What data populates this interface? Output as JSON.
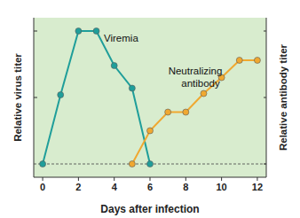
{
  "chart_data": {
    "type": "line",
    "x_label": "Days after infection",
    "y_label": "Relative virus titer",
    "y2_label": "Relative antibody titer",
    "xlim": [
      -0.5,
      12.5
    ],
    "xticks": [
      0,
      2,
      4,
      6,
      8,
      10,
      12
    ],
    "ylim": [
      -1,
      11
    ],
    "yticks": [
      0,
      5,
      10
    ],
    "y2lim": [
      -1,
      11
    ],
    "y2ticks": [
      0,
      5,
      10
    ],
    "tick_labels": "x",
    "grid": false,
    "series": [
      {
        "name": "Viremia",
        "color": "#1f9e9a",
        "marker": "circle",
        "line_style": "solid",
        "x": [
          0,
          1,
          2,
          3,
          4,
          5,
          6
        ],
        "values": [
          0,
          5.2,
          10,
          10,
          7.4,
          5.7,
          0
        ]
      },
      {
        "name": "Neutralizing antibody",
        "color": "#f0a830",
        "marker": "circle",
        "line_style": "solid",
        "axis": "y2",
        "x": [
          5,
          6,
          7,
          8,
          9,
          10,
          11,
          12
        ],
        "values": [
          0,
          2.5,
          3.9,
          3.9,
          5.3,
          6.5,
          7.8,
          7.8
        ]
      }
    ]
  }
}
